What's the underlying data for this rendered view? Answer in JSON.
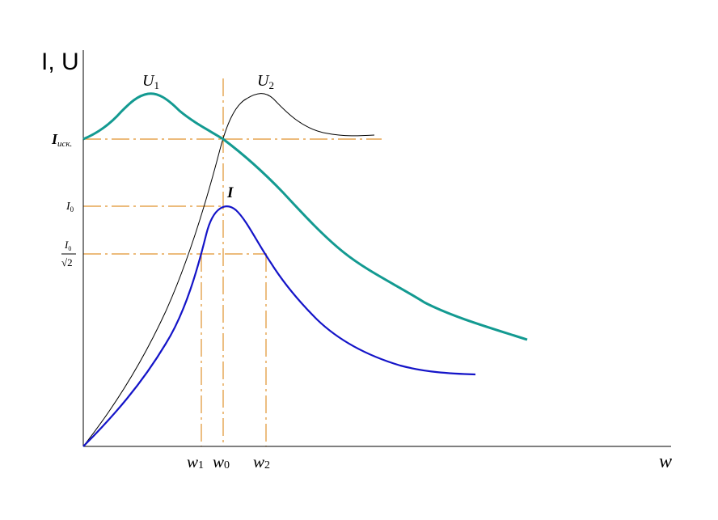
{
  "diagram": {
    "y_axis_label": "I, U",
    "x_axis_label": "w",
    "curve_labels": {
      "u1": {
        "base": "U",
        "sub": "1"
      },
      "u2": {
        "base": "U",
        "sub": "2"
      },
      "i": "I"
    },
    "y_ticks": {
      "i_isk": {
        "base": "I",
        "sub": "иск."
      },
      "i0": {
        "base": "I",
        "sub": "0"
      },
      "i0_frac": {
        "num_base": "I",
        "num_sub": "0",
        "den": "√2"
      }
    },
    "x_ticks": [
      {
        "base": "w",
        "sub": "1"
      },
      {
        "base": "w",
        "sub": "0"
      },
      {
        "base": "w",
        "sub": "2"
      }
    ],
    "colors": {
      "axes": "#000000",
      "u1_curve": "#139a91",
      "u2_curve": "#000000",
      "i_curve": "#1414c8",
      "guides": "#e0922e"
    }
  }
}
